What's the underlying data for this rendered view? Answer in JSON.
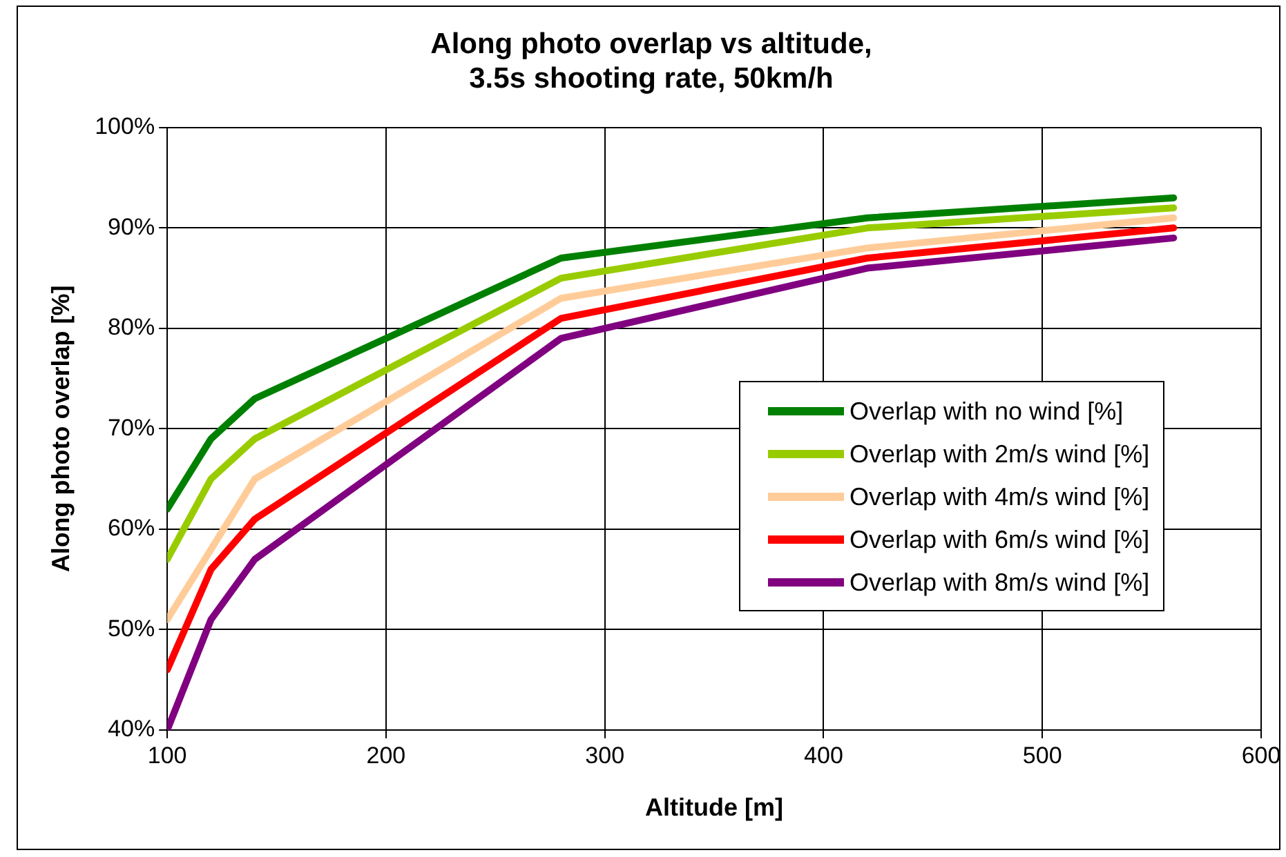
{
  "chart_data": {
    "type": "line",
    "title": "Along photo overlap vs altitude,\n3.5s shooting rate, 50km/h",
    "xlabel": "Altitude [m]",
    "ylabel": "Along photo overlap [%]",
    "x": [
      100,
      120,
      140,
      280,
      420,
      560
    ],
    "series": [
      {
        "name": "Overlap with no wind [%]",
        "color": "#008000",
        "values": [
          62,
          69,
          73,
          87,
          91,
          93
        ]
      },
      {
        "name": "Overlap with 2m/s wind [%]",
        "color": "#99cc00",
        "values": [
          57,
          65,
          69,
          85,
          90,
          92
        ]
      },
      {
        "name": "Overlap with 4m/s wind [%]",
        "color": "#ffcc99",
        "values": [
          51,
          58,
          65,
          83,
          88,
          91
        ]
      },
      {
        "name": "Overlap with 6m/s wind [%]",
        "color": "#ff0000",
        "values": [
          46,
          56,
          61,
          81,
          87,
          90
        ]
      },
      {
        "name": "Overlap with 8m/s wind [%]",
        "color": "#800080",
        "values": [
          40,
          51,
          57,
          79,
          86,
          89
        ]
      }
    ],
    "xlim": [
      100,
      600
    ],
    "xticks": [
      100,
      200,
      300,
      400,
      500,
      600
    ],
    "ylim": [
      40,
      100
    ],
    "yticks": [
      {
        "value": 40,
        "label": "40%"
      },
      {
        "value": 50,
        "label": "50%"
      },
      {
        "value": 60,
        "label": "60%"
      },
      {
        "value": 70,
        "label": "70%"
      },
      {
        "value": 80,
        "label": "80%"
      },
      {
        "value": 90,
        "label": "90%"
      },
      {
        "value": 100,
        "label": "100%"
      }
    ],
    "grid": true,
    "legend": "right",
    "marker": "none",
    "line_style": "solid"
  }
}
